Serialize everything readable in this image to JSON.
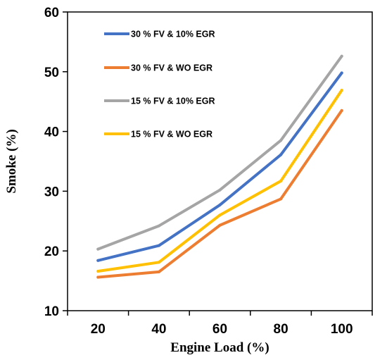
{
  "chart_data": {
    "type": "line",
    "x": [
      20,
      40,
      60,
      80,
      100
    ],
    "xlabel": "Engine Load (%)",
    "ylabel": "Smoke (%)",
    "ylim": [
      10,
      60
    ],
    "yticks": [
      10,
      20,
      30,
      40,
      50,
      60
    ],
    "grid": false,
    "legend_position": "top-left",
    "series": [
      {
        "name": "30 % FV & 10% EGR",
        "color": "#4472C4",
        "values": [
          18.4,
          20.9,
          27.7,
          36.1,
          49.8
        ]
      },
      {
        "name": "30 % FV & WO EGR",
        "color": "#ED7D31",
        "values": [
          15.6,
          16.5,
          24.3,
          28.7,
          43.5
        ]
      },
      {
        "name": "15 % FV & 10% EGR",
        "color": "#A5A5A5",
        "values": [
          20.3,
          24.2,
          30.2,
          38.5,
          52.6
        ]
      },
      {
        "name": "15 % FV & WO EGR",
        "color": "#FFC000",
        "values": [
          16.6,
          18.1,
          26.0,
          31.7,
          46.9
        ]
      }
    ]
  }
}
